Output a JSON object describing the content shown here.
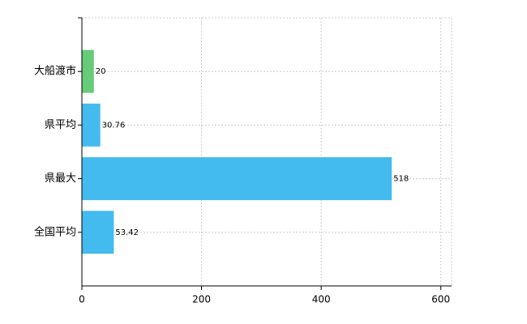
{
  "chart_data": {
    "type": "bar",
    "orientation": "horizontal",
    "categories": [
      "大船渡市",
      "県平均",
      "県最大",
      "全国平均"
    ],
    "values": [
      20,
      30.76,
      518,
      53.42
    ],
    "colors": [
      "#66cc77",
      "#44bbee",
      "#44bbee",
      "#44bbee"
    ],
    "xlim": [
      0,
      618
    ],
    "xticks": [
      0,
      200,
      400,
      600
    ],
    "grid": true
  }
}
